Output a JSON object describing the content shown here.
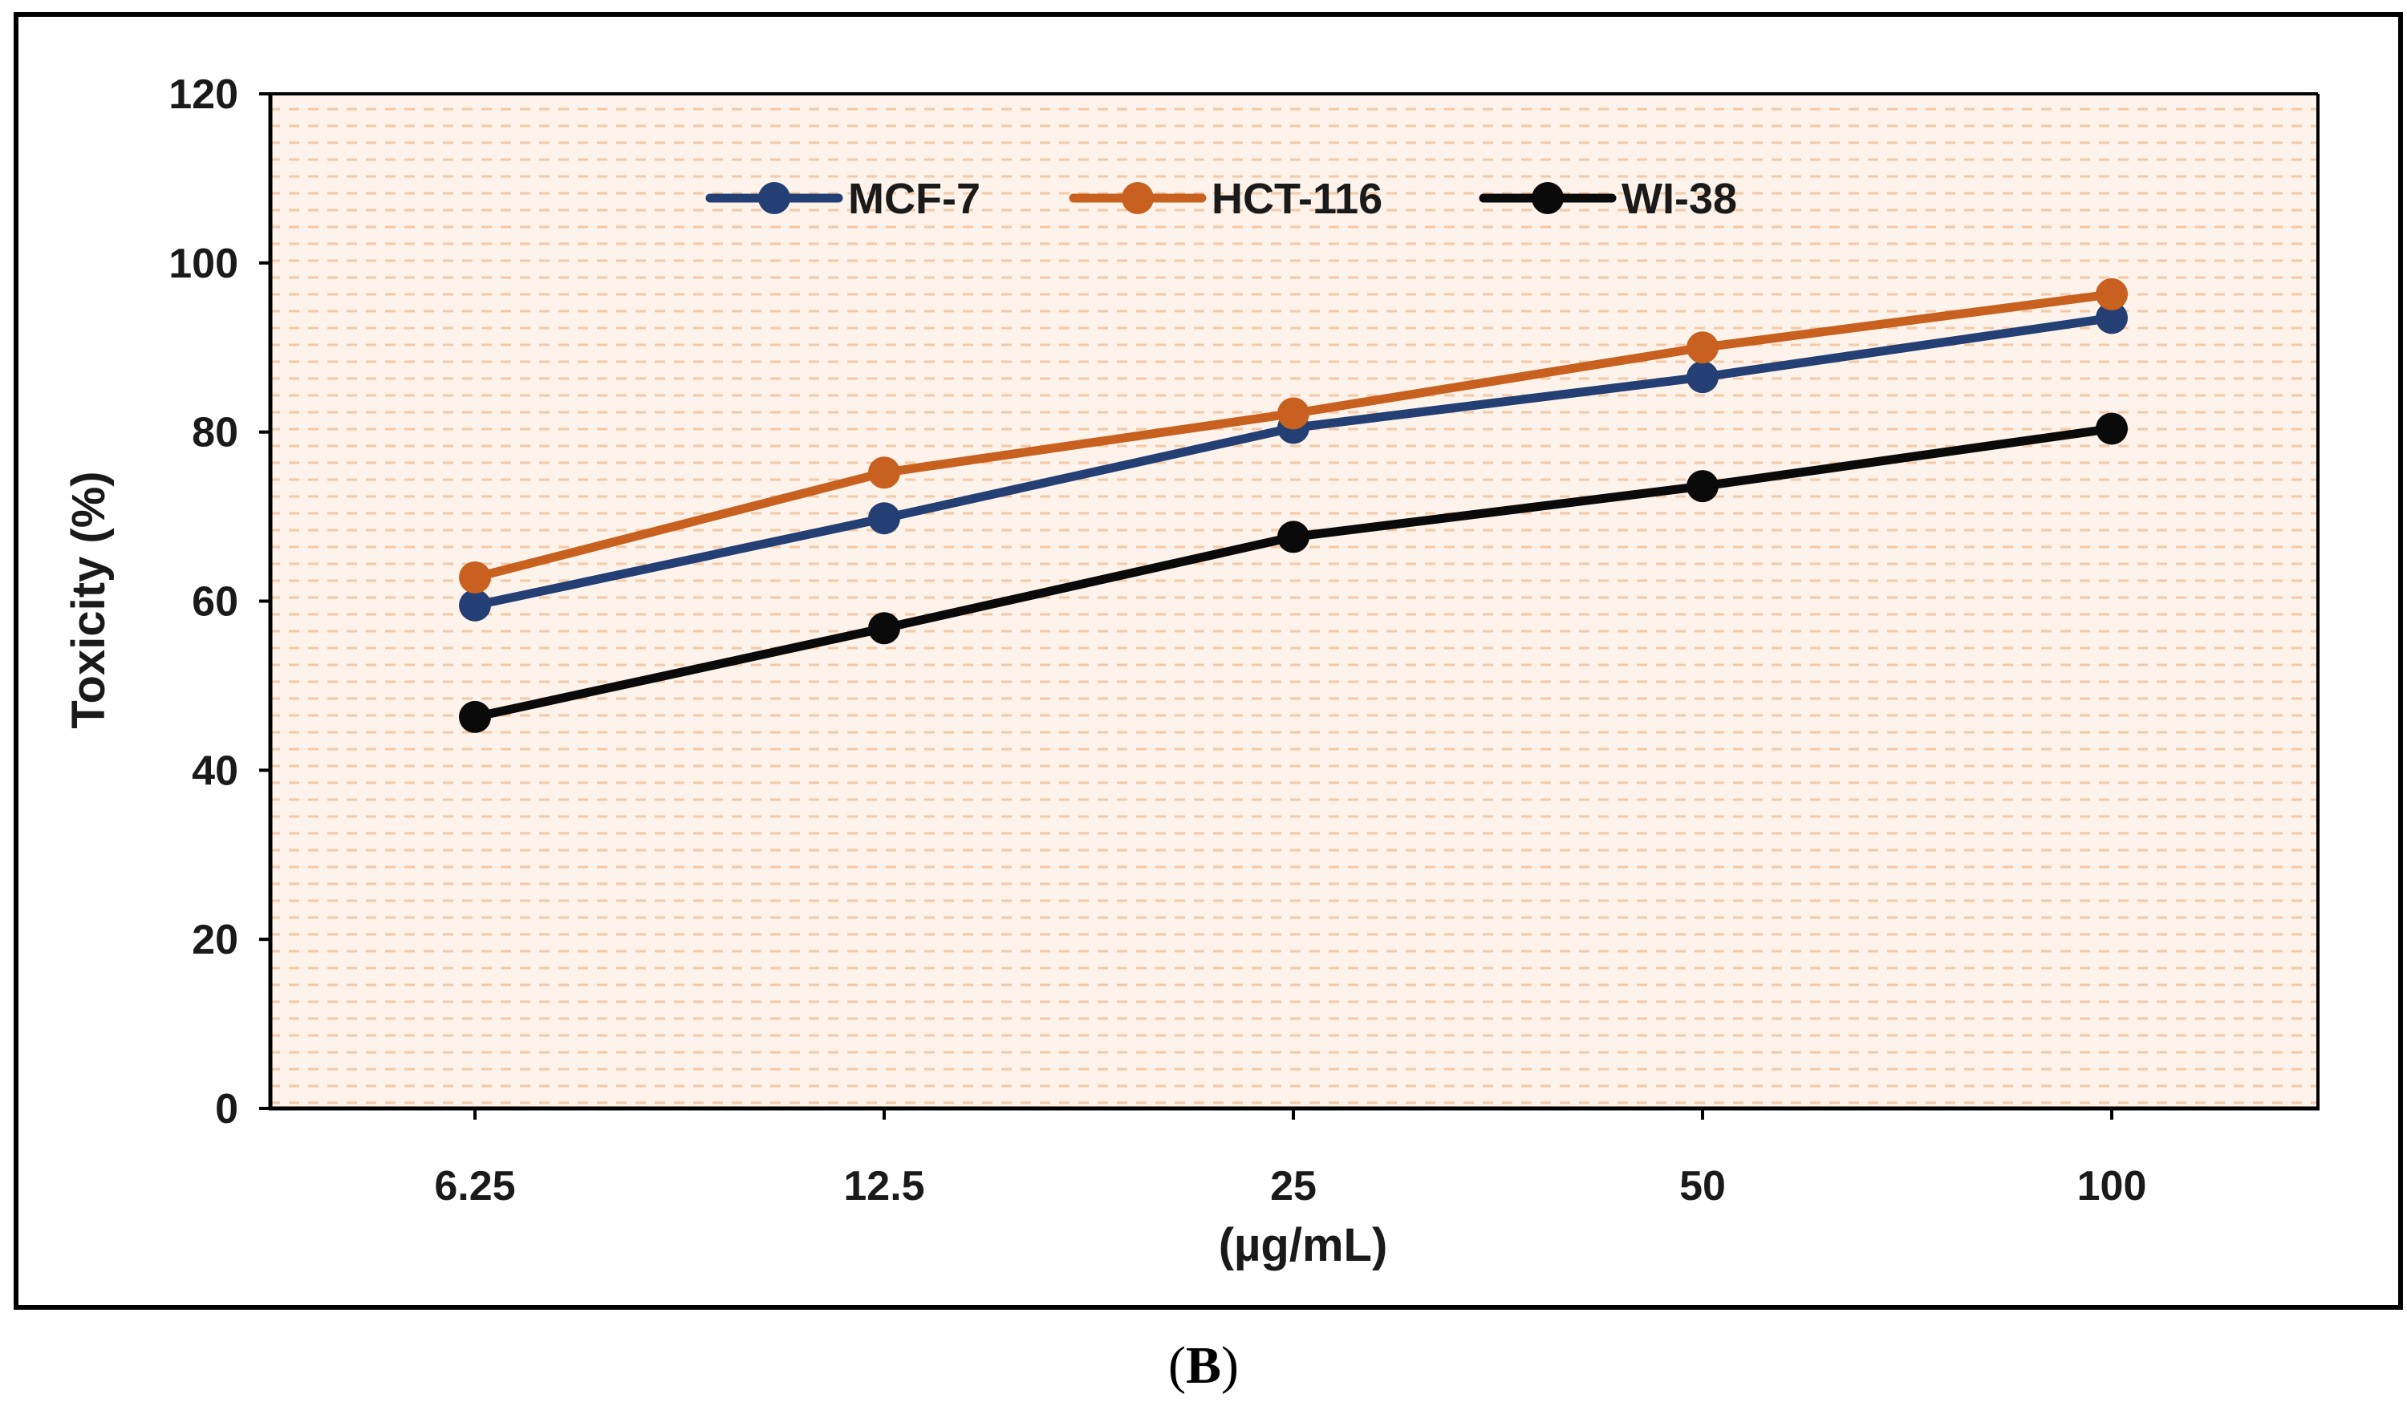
{
  "chart_data": {
    "type": "line",
    "title": "",
    "xlabel": "(µg/mL)",
    "ylabel": "Toxicity (%)",
    "categories": [
      "6.25",
      "12.5",
      "25",
      "50",
      "100"
    ],
    "ylim": [
      0,
      120
    ],
    "yticks": [
      0,
      20,
      40,
      60,
      80,
      100,
      120
    ],
    "grid": false,
    "legend_position": "top-center",
    "series": [
      {
        "name": "MCF-7",
        "color": "#243f73",
        "values": [
          59.5,
          69.8,
          80.5,
          86.5,
          93.5
        ]
      },
      {
        "name": "HCT-116",
        "color": "#c8601f",
        "values": [
          62.8,
          75.2,
          82.2,
          90.0,
          96.3
        ]
      },
      {
        "name": "WI-38",
        "color": "#0a0a0a",
        "values": [
          46.3,
          56.8,
          67.6,
          73.6,
          80.4
        ]
      }
    ]
  },
  "figure": {
    "panel_open": "(",
    "panel_letter": "B",
    "panel_close": ")"
  },
  "colors": {
    "plot_background": "#fdf3ea",
    "plot_stripe": "#f3c9a8",
    "frame": "#000000"
  }
}
